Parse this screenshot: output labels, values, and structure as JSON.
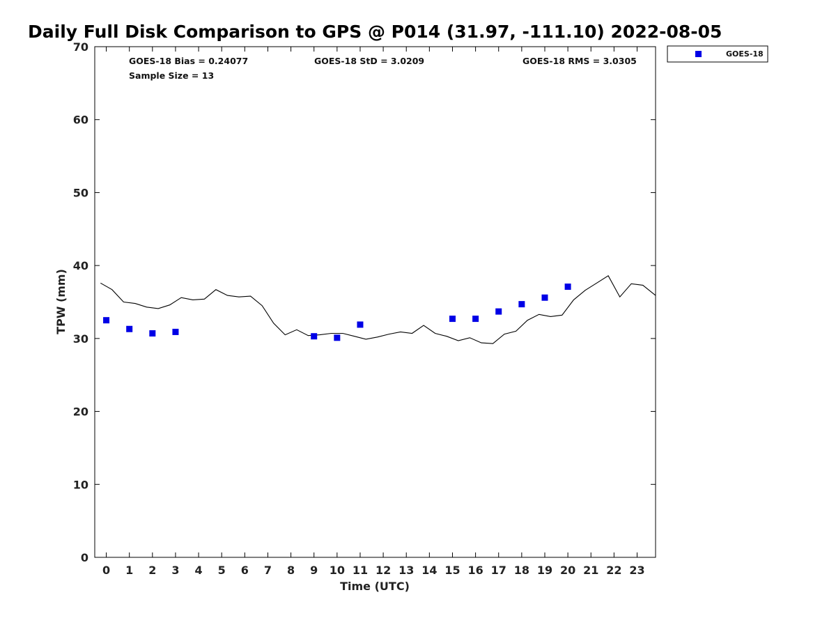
{
  "colors": {
    "series_marker": "#0000e6",
    "line": "#000000",
    "axis": "#000000"
  },
  "chart_data": {
    "type": "scatter",
    "title": "Daily Full Disk Comparison to GPS @ P014 (31.97, -111.10) 2022-08-05",
    "xlabel": "Time (UTC)",
    "ylabel": "TPW (mm)",
    "xlim": [
      -0.5,
      23.8
    ],
    "ylim": [
      0,
      70
    ],
    "x_ticks": [
      0,
      1,
      2,
      3,
      4,
      5,
      6,
      7,
      8,
      9,
      10,
      11,
      12,
      13,
      14,
      15,
      16,
      17,
      18,
      19,
      20,
      21,
      22,
      23
    ],
    "y_ticks": [
      0,
      10,
      20,
      30,
      40,
      50,
      60,
      70
    ],
    "stats": {
      "bias": "GOES-18 Bias = 0.24077",
      "std": "GOES-18 StD = 3.0209",
      "rms": "GOES-18 RMS = 3.0305",
      "sample": "Sample Size = 13"
    },
    "legend": {
      "label": "GOES-18",
      "position": "top-right outside"
    },
    "series": [
      {
        "name": "GOES-18",
        "kind": "markers",
        "x": [
          0,
          1,
          2,
          3,
          9,
          10,
          11,
          15,
          16,
          17,
          18,
          19,
          20
        ],
        "y": [
          32.5,
          31.3,
          30.7,
          30.9,
          30.3,
          30.1,
          31.9,
          32.7,
          32.7,
          33.7,
          34.7,
          35.6,
          37.1
        ]
      },
      {
        "name": "GPS",
        "kind": "line",
        "x": [
          -0.25,
          0.25,
          0.75,
          1.25,
          1.75,
          2.25,
          2.75,
          3.25,
          3.75,
          4.25,
          4.75,
          5.25,
          5.75,
          6.25,
          6.75,
          7.25,
          7.75,
          8.25,
          8.75,
          9.25,
          9.75,
          10.25,
          10.75,
          11.25,
          11.75,
          12.25,
          12.75,
          13.25,
          13.75,
          14.25,
          14.75,
          15.25,
          15.75,
          16.25,
          16.75,
          17.25,
          17.75,
          18.25,
          18.75,
          19.25,
          19.75,
          20.25,
          20.75,
          21.25,
          21.75,
          22.25,
          22.75,
          23.25,
          23.8
        ],
        "y": [
          37.6,
          36.7,
          35.0,
          34.8,
          34.3,
          34.1,
          34.6,
          35.6,
          35.3,
          35.4,
          36.7,
          35.9,
          35.7,
          35.8,
          34.5,
          32.1,
          30.5,
          31.2,
          30.4,
          30.5,
          30.7,
          30.7,
          30.3,
          29.9,
          30.2,
          30.6,
          30.9,
          30.7,
          31.8,
          30.7,
          30.3,
          29.7,
          30.1,
          29.4,
          29.3,
          30.6,
          31.0,
          32.5,
          33.3,
          33.0,
          33.2,
          35.3,
          36.6,
          37.6,
          38.6,
          35.7,
          37.5,
          37.3,
          35.9
        ]
      }
    ]
  }
}
